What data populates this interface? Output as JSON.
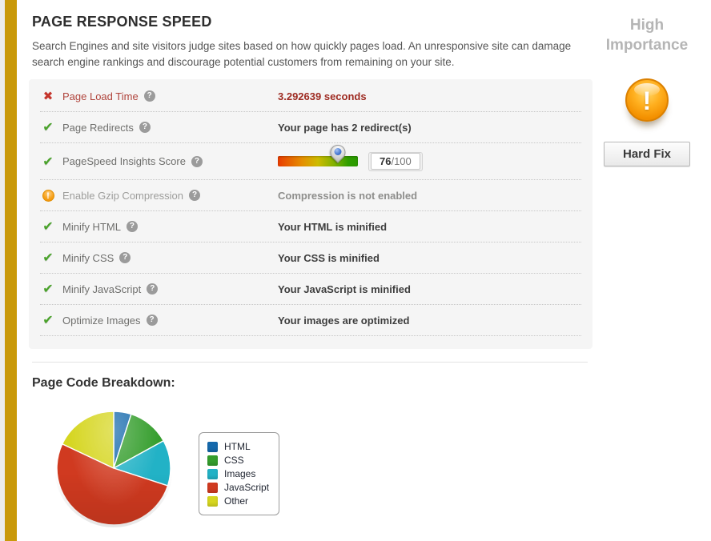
{
  "icons": {
    "check": "✔",
    "cross": "✖",
    "warning": "!",
    "help": "?",
    "alert": "!"
  },
  "colors": {
    "accent_bar": "#c9990a",
    "fail_text": "#9e2b22",
    "pass_green": "#4aa32b",
    "warn_orange": "#f6a21c"
  },
  "section": {
    "title": "PAGE RESPONSE SPEED",
    "description": "Search Engines and site visitors judge sites based on how quickly pages load. An unresponsive site can damage search engine rankings and discourage potential customers from remaining on your site.",
    "importance_label": "High Importance",
    "fix_button_label": "Hard Fix",
    "rows": [
      {
        "label": "Page Load Time",
        "value": "3.292639 seconds",
        "status": "fail"
      },
      {
        "label": "Page Redirects",
        "value": "Your page has 2 redirect(s)",
        "status": "pass"
      },
      {
        "label": "PageSpeed Insights Score",
        "status": "pass",
        "score": 76,
        "score_num": "76",
        "score_den": "/100"
      },
      {
        "label": "Enable Gzip Compression",
        "value": "Compression is not enabled",
        "status": "warn"
      },
      {
        "label": "Minify HTML",
        "value": "Your HTML is minified",
        "status": "pass"
      },
      {
        "label": "Minify CSS",
        "value": "Your CSS is minified",
        "status": "pass"
      },
      {
        "label": "Minify JavaScript",
        "value": "Your JavaScript is minified",
        "status": "pass"
      },
      {
        "label": "Optimize Images",
        "value": "Your images are optimized",
        "status": "pass"
      }
    ]
  },
  "breakdown": {
    "heading": "Page Code Breakdown:"
  },
  "chart_data": {
    "type": "pie",
    "title": "Page Code Breakdown",
    "labels": [
      "HTML",
      "CSS",
      "Images",
      "JavaScript",
      "Other"
    ],
    "values": [
      5,
      12,
      13,
      52,
      18
    ],
    "unit": "percent (estimated from slice angles)",
    "colors": [
      "#1569ac",
      "#359e2d",
      "#22b2c6",
      "#d03a20",
      "#d6d620"
    ],
    "start_angle_deg": 0,
    "direction": "clockwise",
    "legend_position": "right"
  }
}
